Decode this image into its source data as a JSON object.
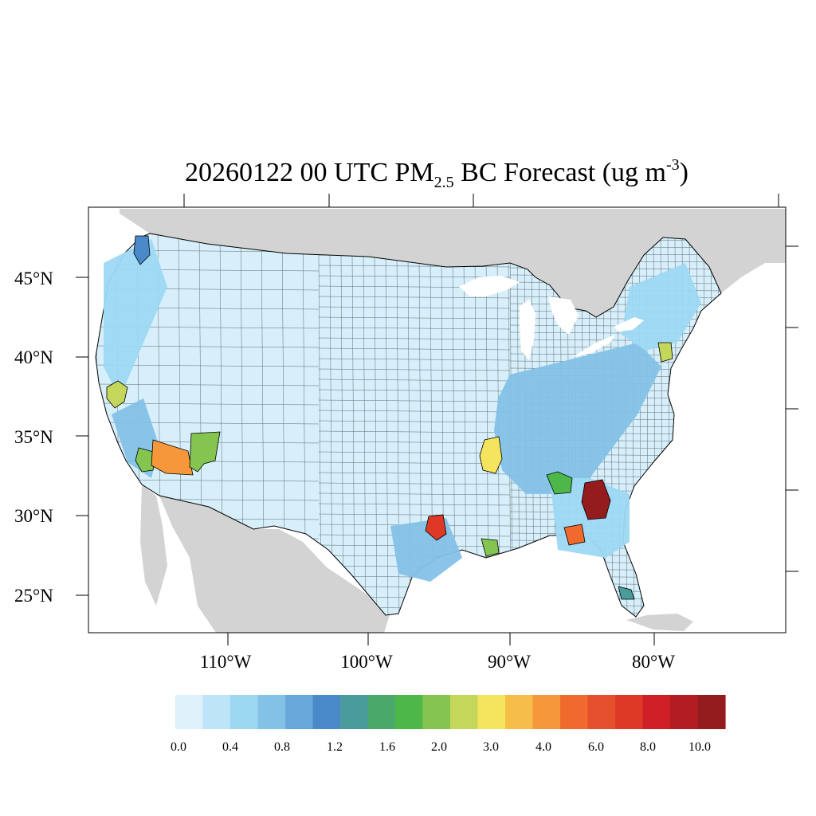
{
  "title": {
    "prefix": "20260122 00 UTC PM",
    "subscript": "2.5",
    "middle": " BC Forecast (ug m",
    "superscript": "-3",
    "suffix": ")"
  },
  "map": {
    "projection": "lambert-conformal",
    "region": "Contiguous United States",
    "land_outside_domain_color": "#d3d3d3",
    "water_color": "#ffffff",
    "county_border_color": "#000000",
    "latitude_labels": [
      "45°N",
      "40°N",
      "35°N",
      "30°N",
      "25°N"
    ],
    "longitude_labels": [
      "110°W",
      "100°W",
      "90°W",
      "80°W"
    ],
    "hotspots": [
      {
        "area": "San Francisco Bay Area",
        "level": "2.0-3.0"
      },
      {
        "area": "Seattle",
        "level": "1.2-1.6"
      },
      {
        "area": "Southern California / Los Angeles",
        "level": "2.0-3.0"
      },
      {
        "area": "Western Arizona (Mohave / La Paz)",
        "level": "4.0-6.0"
      },
      {
        "area": "Central Arizona",
        "level": "2.0-3.0"
      },
      {
        "area": "Northeast Louisiana / Mississippi Delta",
        "level": "2.0-4.0"
      },
      {
        "area": "Houston",
        "level": "6.0-8.0"
      },
      {
        "area": "Southeast Louisiana",
        "level": "2.0-3.0"
      },
      {
        "area": "Central Alabama",
        "level": "1.6-3.0"
      },
      {
        "area": "Central Georgia",
        "level": "8.0-10.0"
      },
      {
        "area": "South Georgia",
        "level": "4.0-6.0"
      },
      {
        "area": "New York City",
        "level": "2.0-3.0"
      },
      {
        "area": "South Florida",
        "level": "1.0-1.4"
      }
    ]
  },
  "colorbar": {
    "colors": [
      "#dff1fa",
      "#bde4f7",
      "#9dd8f3",
      "#84c1e7",
      "#69a8da",
      "#4a8ac8",
      "#4a9c9c",
      "#4aa86a",
      "#4db848",
      "#84c550",
      "#c4d75a",
      "#f4e45e",
      "#f6bd48",
      "#f5973a",
      "#ef6a2c",
      "#e5512c",
      "#dd3926",
      "#cf2027",
      "#b31c22",
      "#941b1e"
    ],
    "labels": [
      "0.0",
      "0.4",
      "0.8",
      "1.2",
      "1.6",
      "2.0",
      "3.0",
      "4.0",
      "6.0",
      "8.0",
      "10.0"
    ]
  }
}
